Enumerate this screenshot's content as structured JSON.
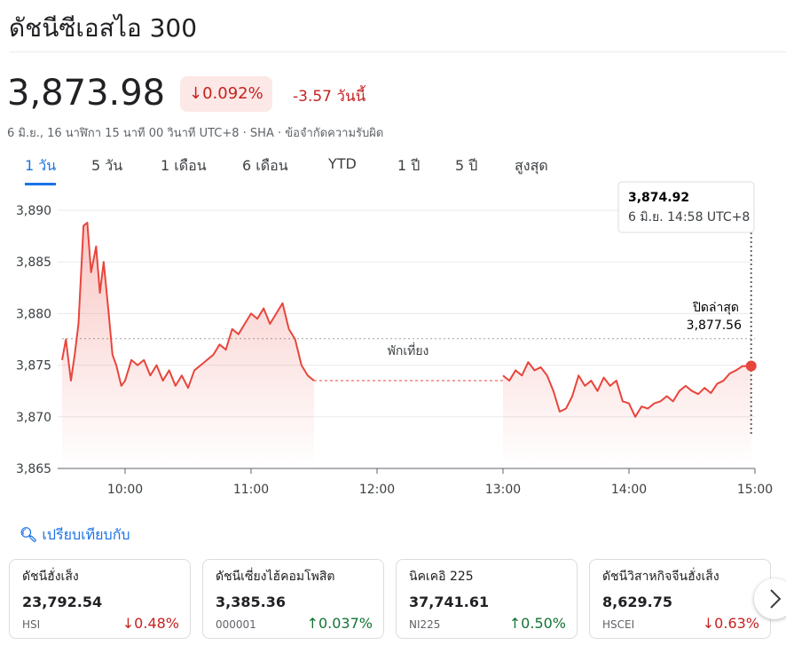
{
  "header": {
    "title": "ดัชนีซีเอสไอ 300",
    "price": "3,873.98",
    "change_percent": "0.092%",
    "change": "-3.57",
    "change_period": "วันนี้",
    "meta": "6 มิ.ย., 16 นาฬิกา 15 นาที 00 วินาที UTC+8 · SHA · ข้อจำกัดความรับผิด"
  },
  "tabs": [
    "1 วัน",
    "5 วัน",
    "1 เดือน",
    "6 เดือน",
    "YTD",
    "1 ปี",
    "5 ปี",
    "สูงสุด"
  ],
  "chart_data": {
    "type": "line",
    "x": [
      9.5,
      9.53,
      9.57,
      9.6,
      9.63,
      9.67,
      9.7,
      9.73,
      9.77,
      9.8,
      9.83,
      9.87,
      9.9,
      9.93,
      9.97,
      10,
      10.05,
      10.1,
      10.15,
      10.2,
      10.25,
      10.3,
      10.35,
      10.4,
      10.45,
      10.5,
      10.55,
      10.6,
      10.65,
      10.7,
      10.75,
      10.8,
      10.85,
      10.9,
      10.95,
      11,
      11.05,
      11.1,
      11.15,
      11.2,
      11.25,
      11.3,
      11.35,
      11.4,
      11.45,
      11.5,
      12.25,
      13,
      13.05,
      13.1,
      13.15,
      13.2,
      13.25,
      13.3,
      13.35,
      13.4,
      13.45,
      13.5,
      13.55,
      13.6,
      13.65,
      13.7,
      13.75,
      13.8,
      13.85,
      13.9,
      13.95,
      14,
      14.05,
      14.1,
      14.15,
      14.2,
      14.25,
      14.3,
      14.35,
      14.4,
      14.45,
      14.5,
      14.55,
      14.6,
      14.65,
      14.7,
      14.75,
      14.8,
      14.85,
      14.9,
      14.97
    ],
    "series": [
      {
        "name": "ดัชนีซีเอสไอ 300",
        "color": "#e8453c",
        "values": [
          3875.5,
          3877.5,
          3873.5,
          3876,
          3879,
          3888.5,
          3888.8,
          3884,
          3886.5,
          3882,
          3885,
          3880,
          3876,
          3875,
          3873,
          3873.5,
          3875.5,
          3875,
          3875.5,
          3874,
          3875,
          3873.5,
          3874.5,
          3873,
          3874,
          3872.8,
          3874.5,
          3875,
          3875.5,
          3876,
          3877,
          3876.5,
          3878.5,
          3878,
          3879,
          3880,
          3879.5,
          3880.5,
          3879,
          3880,
          3881,
          3878.5,
          3877.5,
          3875,
          3874,
          3873.5,
          null,
          3874,
          3873.5,
          3874.5,
          3874,
          3875.3,
          3874.5,
          3874.8,
          3874,
          3872.5,
          3870.5,
          3870.8,
          3872,
          3874,
          3873,
          3873.5,
          3872.5,
          3873.8,
          3873,
          3873.5,
          3871.5,
          3871.3,
          3870,
          3871,
          3870.8,
          3871.3,
          3871.5,
          3872,
          3871.5,
          3872.5,
          3873,
          3872.5,
          3872.2,
          3872.8,
          3872.3,
          3873.2,
          3873.5,
          3874.2,
          3874.5,
          3874.9,
          3874.92
        ]
      }
    ],
    "xlim": [
      9.5,
      15
    ],
    "xticks": [
      {
        "value": 10,
        "label": "10:00"
      },
      {
        "value": 11,
        "label": "11:00"
      },
      {
        "value": 12,
        "label": "12:00"
      },
      {
        "value": 13,
        "label": "13:00"
      },
      {
        "value": 14,
        "label": "14:00"
      },
      {
        "value": 15,
        "label": "15:00"
      }
    ],
    "ylim": [
      3865,
      3890
    ],
    "yticks": [
      {
        "value": 3865,
        "label": "3,865"
      },
      {
        "value": 3870,
        "label": "3,870"
      },
      {
        "value": 3875,
        "label": "3,875"
      },
      {
        "value": 3880,
        "label": "3,880"
      },
      {
        "value": 3885,
        "label": "3,885"
      },
      {
        "value": 3890,
        "label": "3,890"
      }
    ],
    "grid": true,
    "previous_close": {
      "label": "ปิดล่าสุด",
      "value": 3877.56,
      "value_label": "3,877.56"
    },
    "break_label": "พักเที่ยง",
    "tooltip": {
      "value": "3,874.92",
      "time": "6 มิ.ย. 14:58 UTC+8"
    }
  },
  "compare": {
    "label": "เปรียบเทียบกับ",
    "cards": [
      {
        "name": "ดัชนีฮั่งเส็ง",
        "price": "23,792.54",
        "symbol": "HSI",
        "change": "0.48%",
        "direction": "down"
      },
      {
        "name": "ดัชนีเซี่ยงไฮ้คอมโพสิต",
        "price": "3,385.36",
        "symbol": "000001",
        "change": "0.037%",
        "direction": "up"
      },
      {
        "name": "นิคเคอิ 225",
        "price": "37,741.61",
        "symbol": "NI225",
        "change": "0.50%",
        "direction": "up"
      },
      {
        "name": "ดัชนีวิสาหกิจจีนฮั่งเส็ง",
        "price": "8,629.75",
        "symbol": "HSCEI",
        "change": "0.63%",
        "direction": "down"
      }
    ]
  }
}
